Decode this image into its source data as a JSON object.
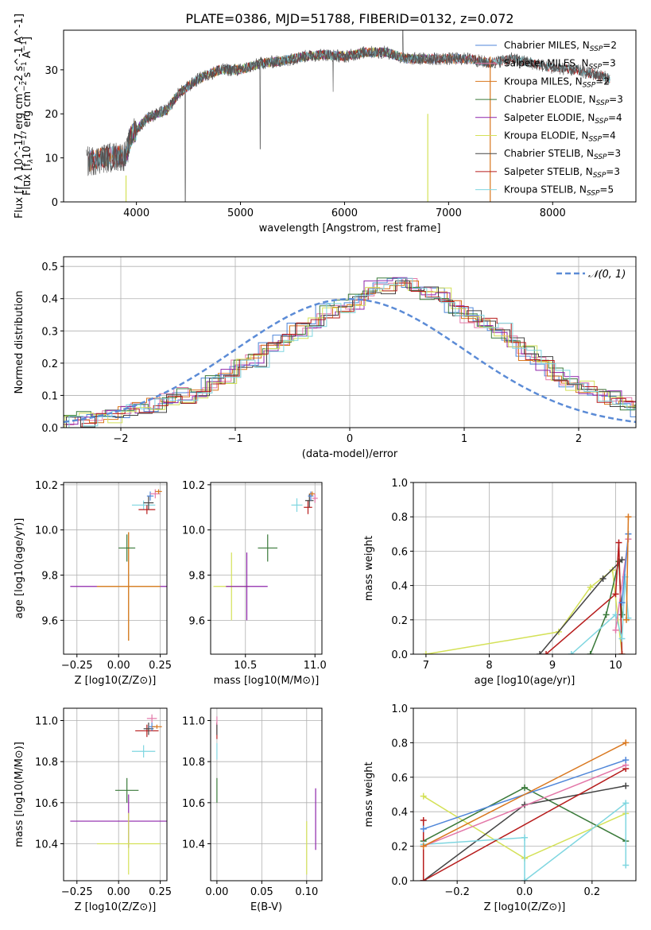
{
  "title": "PLATE=0386, MJD=51788, FIBERID=0132, z=0.072",
  "colors": {
    "chab_miles": "#4f86d9",
    "salp_miles": "#e377a8",
    "krou_miles": "#d9771e",
    "chab_elodie": "#3a7a3a",
    "salp_elodie": "#8e24aa",
    "krou_elodie": "#d4e157",
    "chab_stelib": "#444444",
    "salp_stelib": "#b71c1c",
    "krou_stelib": "#7fd6e0",
    "normal": "#5b8bd6",
    "grid": "#b0b0b0"
  },
  "chart_data": [
    {
      "id": "spectrum",
      "type": "line",
      "xlabel": "wavelength [Angstrom, rest frame]",
      "ylabel": "Flux [f_λ 10^-17 erg cm^-2 s^-1 A^-1]",
      "xlim": [
        3300,
        8800
      ],
      "ylim": [
        0,
        39
      ],
      "xticks": [
        4000,
        5000,
        6000,
        7000,
        8000
      ],
      "yticks": [
        0,
        10,
        20,
        30
      ],
      "grid": false,
      "legend": "upper right",
      "legend_entries": [
        {
          "name": "Chabrier MILES",
          "nssp": "2"
        },
        {
          "name": "Salpeter MILES",
          "nssp": "3"
        },
        {
          "name": "Kroupa MILES",
          "nssp": "2"
        },
        {
          "name": "Chabrier ELODIE",
          "nssp": "3"
        },
        {
          "name": "Salpeter ELODIE",
          "nssp": "4"
        },
        {
          "name": "Kroupa ELODIE",
          "nssp": "4"
        },
        {
          "name": "Chabrier STELIB",
          "nssp": "3"
        },
        {
          "name": "Salpeter STELIB",
          "nssp": "3"
        },
        {
          "name": "Kroupa STELIB",
          "nssp": "5"
        }
      ],
      "continuum": {
        "x": [
          3500,
          3700,
          3900,
          3950,
          4100,
          4300,
          4400,
          4600,
          4800,
          5000,
          5200,
          5400,
          5600,
          5800,
          6000,
          6200,
          6400,
          6600,
          6800,
          7000,
          7200,
          7400,
          7600,
          7800,
          8000,
          8200,
          8400,
          8550
        ],
        "y": [
          9,
          10,
          10.5,
          15,
          19,
          21,
          24.5,
          28,
          30,
          30,
          31.5,
          32,
          33,
          33.5,
          33,
          34,
          34,
          32.5,
          32.5,
          32.5,
          32.5,
          31.5,
          32.5,
          31.5,
          30.5,
          30,
          29,
          28
        ]
      }
    },
    {
      "id": "residuals",
      "type": "histogram",
      "xlabel": "(data-model)/error",
      "ylabel": "Normed distribution",
      "xlim": [
        -2.5,
        2.5
      ],
      "ylim": [
        0,
        0.53
      ],
      "xticks": [
        -2,
        -1,
        0,
        1,
        2
      ],
      "xtick_labels": [
        "−2",
        "−1",
        "0",
        "1",
        "2"
      ],
      "yticks": [
        0.0,
        0.1,
        0.2,
        0.3,
        0.4,
        0.5
      ],
      "ytick_labels": [
        "0.0",
        "0.1",
        "0.2",
        "0.3",
        "0.4",
        "0.5"
      ],
      "grid": true,
      "legend": "upper right",
      "normal_label": "𝒩(0, 1)",
      "bin_edges_start": -2.5,
      "bin_width": 0.125,
      "base": [
        0.02,
        0.025,
        0.03,
        0.04,
        0.055,
        0.06,
        0.07,
        0.09,
        0.1,
        0.11,
        0.14,
        0.16,
        0.19,
        0.21,
        0.24,
        0.27,
        0.3,
        0.33,
        0.36,
        0.38,
        0.39,
        0.43,
        0.44,
        0.45,
        0.44,
        0.42,
        0.41,
        0.37,
        0.35,
        0.32,
        0.3,
        0.26,
        0.23,
        0.2,
        0.17,
        0.14,
        0.12,
        0.1,
        0.09,
        0.07,
        0.05,
        0.045,
        0.04,
        0.03,
        0.025
      ]
    },
    {
      "id": "age-vs-Z",
      "type": "errorbar",
      "xlabel": "Z [log10(Z/Z⊙)]",
      "ylabel": "age [log10(age/yr)]",
      "xlim": [
        -0.33,
        0.29
      ],
      "ylim": [
        9.45,
        10.21
      ],
      "xticks": [
        -0.25,
        0.0,
        0.25
      ],
      "xtick_labels": [
        "−0.25",
        "0.00",
        "0.25"
      ],
      "yticks": [
        9.6,
        9.8,
        10.0,
        10.2
      ],
      "ytick_labels": [
        "9.6",
        "9.8",
        "10.0",
        "10.2"
      ],
      "grid": true,
      "points": [
        {
          "s": "salp_elodie",
          "x": 0.06,
          "y": 9.75,
          "xe": 0.35,
          "ye": 0.24
        },
        {
          "s": "krou_elodie",
          "x": 0.06,
          "y": 9.75,
          "xe": 0.19,
          "ye": 0.24
        },
        {
          "s": "krou_miles",
          "x": 0.06,
          "y": 9.75,
          "xe": 0.19,
          "ye": 0.24
        },
        {
          "s": "chab_elodie",
          "x": 0.05,
          "y": 9.92,
          "xe": 0.05,
          "ye": 0.06
        },
        {
          "s": "krou_stelib",
          "x": 0.15,
          "y": 10.11,
          "xe": 0.07,
          "ye": 0.02
        },
        {
          "s": "salp_stelib",
          "x": 0.17,
          "y": 10.09,
          "xe": 0.05,
          "ye": 0.02
        },
        {
          "s": "chab_stelib",
          "x": 0.18,
          "y": 10.12,
          "xe": 0.03,
          "ye": 0.03
        },
        {
          "s": "chab_miles",
          "x": 0.19,
          "y": 10.15,
          "xe": 0.02,
          "ye": 0.02
        },
        {
          "s": "salp_miles",
          "x": 0.22,
          "y": 10.16,
          "xe": 0.03,
          "ye": 0.02
        },
        {
          "s": "krou_miles",
          "x": 0.24,
          "y": 10.17,
          "xe": 0.02,
          "ye": 0.01
        }
      ]
    },
    {
      "id": "age-vs-mass",
      "type": "errorbar",
      "xlabel": "mass [log10(M/M⊙)]",
      "ylabel": "",
      "xlim": [
        10.25,
        11.05
      ],
      "ylim": [
        9.45,
        10.21
      ],
      "xticks": [
        10.5,
        11.0
      ],
      "xtick_labels": [
        "10.5",
        "11.0"
      ],
      "yticks": [
        9.6,
        9.8,
        10.0,
        10.2
      ],
      "ytick_labels": [
        "9.6",
        "9.8",
        "10.0",
        "10.2"
      ],
      "grid": true,
      "points": [
        {
          "s": "krou_elodie",
          "x": 10.4,
          "y": 9.75,
          "xe": 0.13,
          "ye": 0.15
        },
        {
          "s": "salp_elodie",
          "x": 10.51,
          "y": 9.75,
          "xe": 0.15,
          "ye": 0.15
        },
        {
          "s": "chab_elodie",
          "x": 10.66,
          "y": 9.92,
          "xe": 0.07,
          "ye": 0.06
        },
        {
          "s": "krou_stelib",
          "x": 10.87,
          "y": 10.11,
          "xe": 0.04,
          "ye": 0.03
        },
        {
          "s": "salp_stelib",
          "x": 10.95,
          "y": 10.1,
          "xe": 0.03,
          "ye": 0.03
        },
        {
          "s": "chab_stelib",
          "x": 10.96,
          "y": 10.13,
          "xe": 0.03,
          "ye": 0.03
        },
        {
          "s": "chab_miles",
          "x": 10.97,
          "y": 10.15,
          "xe": 0.02,
          "ye": 0.02
        },
        {
          "s": "krou_miles",
          "x": 10.98,
          "y": 10.16,
          "xe": 0.02,
          "ye": 0.01
        },
        {
          "s": "salp_miles",
          "x": 11.0,
          "y": 10.14,
          "xe": 0.02,
          "ye": 0.02
        }
      ]
    },
    {
      "id": "mass-weight-vs-age",
      "type": "line",
      "xlabel": "age [log10(age/yr)]",
      "ylabel": "mass weight",
      "xlim": [
        6.8,
        10.32
      ],
      "ylim": [
        0,
        1
      ],
      "xticks": [
        7,
        8,
        9,
        10
      ],
      "xtick_labels": [
        "7",
        "8",
        "9",
        "10"
      ],
      "yticks": [
        0,
        0.2,
        0.4,
        0.6,
        0.8,
        1.0
      ],
      "ytick_labels": [
        "0.0",
        "0.2",
        "0.4",
        "0.6",
        "0.8",
        "1.0"
      ],
      "grid": true,
      "series": [
        {
          "s": "krou_elodie",
          "x": [
            7.0,
            9.1,
            9.6,
            9.95,
            10.1
          ],
          "y": [
            0.0,
            0.13,
            0.39,
            0.49,
            0.0
          ]
        },
        {
          "s": "chab_elodie",
          "x": [
            9.6,
            9.85,
            10.05,
            10.1
          ],
          "y": [
            0.0,
            0.23,
            0.54,
            0.23
          ]
        },
        {
          "s": "chab_stelib",
          "x": [
            8.8,
            9.8,
            10.1
          ],
          "y": [
            0.0,
            0.44,
            0.55
          ]
        },
        {
          "s": "salp_stelib",
          "x": [
            8.9,
            10.0,
            10.05,
            10.1
          ],
          "y": [
            0.0,
            0.35,
            0.65,
            0.0
          ]
        },
        {
          "s": "krou_stelib",
          "x": [
            9.3,
            10.0,
            10.1,
            10.15,
            10.2
          ],
          "y": [
            0.0,
            0.23,
            0.09,
            0.45,
            0.21
          ]
        },
        {
          "s": "salp_miles",
          "x": [
            10.0,
            10.2
          ],
          "y": [
            0.14,
            0.67
          ]
        },
        {
          "s": "chab_miles",
          "x": [
            10.1,
            10.2
          ],
          "y": [
            0.3,
            0.7
          ]
        },
        {
          "s": "krou_miles",
          "x": [
            10.17,
            10.2
          ],
          "y": [
            0.2,
            0.8
          ]
        }
      ]
    },
    {
      "id": "mass-vs-Z",
      "type": "errorbar",
      "xlabel": "Z [log10(Z/Z⊙)]",
      "ylabel": "mass [log10(M/M⊙)]",
      "xlim": [
        -0.33,
        0.29
      ],
      "ylim": [
        10.22,
        11.06
      ],
      "xticks": [
        -0.25,
        0.0,
        0.25
      ],
      "xtick_labels": [
        "−0.25",
        "0.00",
        "0.25"
      ],
      "yticks": [
        10.4,
        10.6,
        10.8,
        11.0
      ],
      "ytick_labels": [
        "10.4",
        "10.6",
        "10.8",
        "11.0"
      ],
      "grid": true,
      "points": [
        {
          "s": "salp_elodie",
          "x": 0.06,
          "y": 10.51,
          "xe": 0.35,
          "ye": 0.13
        },
        {
          "s": "krou_elodie",
          "x": 0.06,
          "y": 10.4,
          "xe": 0.19,
          "ye": 0.15
        },
        {
          "s": "chab_elodie",
          "x": 0.05,
          "y": 10.66,
          "xe": 0.07,
          "ye": 0.06
        },
        {
          "s": "krou_stelib",
          "x": 0.15,
          "y": 10.85,
          "xe": 0.07,
          "ye": 0.03
        },
        {
          "s": "salp_stelib",
          "x": 0.17,
          "y": 10.95,
          "xe": 0.07,
          "ye": 0.03
        },
        {
          "s": "chab_stelib",
          "x": 0.18,
          "y": 10.96,
          "xe": 0.03,
          "ye": 0.03
        },
        {
          "s": "chab_miles",
          "x": 0.2,
          "y": 10.97,
          "xe": 0.02,
          "ye": 0.02
        },
        {
          "s": "krou_miles",
          "x": 0.23,
          "y": 10.97,
          "xe": 0.03,
          "ye": 0.01
        },
        {
          "s": "salp_miles",
          "x": 0.2,
          "y": 11.01,
          "xe": 0.03,
          "ye": 0.02
        }
      ]
    },
    {
      "id": "mass-vs-ebv",
      "type": "errorbar",
      "xlabel": "E(B-V)",
      "ylabel": "",
      "xlim": [
        -0.007,
        0.117
      ],
      "ylim": [
        10.22,
        11.06
      ],
      "xticks": [
        0.0,
        0.05,
        0.1
      ],
      "xtick_labels": [
        "0.00",
        "0.05",
        "0.10"
      ],
      "yticks": [
        10.4,
        10.6,
        10.8,
        11.0
      ],
      "ytick_labels": [
        "10.4",
        "10.6",
        "10.8",
        "11.0"
      ],
      "grid": true,
      "points": [
        {
          "s": "krou_elodie",
          "x": 0.1,
          "y": 10.38,
          "xe": 0.0,
          "ye": 0.13
        },
        {
          "s": "salp_elodie",
          "x": 0.11,
          "y": 10.52,
          "xe": 0.0,
          "ye": 0.15
        },
        {
          "s": "chab_elodie",
          "x": 0.0,
          "y": 10.66,
          "xe": 0.0,
          "ye": 0.06
        },
        {
          "s": "krou_stelib",
          "x": 0.0,
          "y": 10.85,
          "xe": 0.0,
          "ye": 0.04
        },
        {
          "s": "salp_stelib",
          "x": 0.0,
          "y": 10.95,
          "xe": 0.0,
          "ye": 0.04
        },
        {
          "s": "chab_stelib",
          "x": 0.0,
          "y": 10.96,
          "xe": 0.0,
          "ye": 0.03
        },
        {
          "s": "salp_miles",
          "x": 0.0,
          "y": 11.0,
          "xe": 0.0,
          "ye": 0.02
        }
      ]
    },
    {
      "id": "mass-weight-vs-Z",
      "type": "line",
      "xlabel": "Z [log10(Z/Z⊙)]",
      "ylabel": "mass weight",
      "xlim": [
        -0.33,
        0.33
      ],
      "ylim": [
        0,
        1
      ],
      "xticks": [
        -0.2,
        0.0,
        0.2
      ],
      "xtick_labels": [
        "−0.2",
        "0.0",
        "0.2"
      ],
      "yticks": [
        0,
        0.2,
        0.4,
        0.6,
        0.8,
        1.0
      ],
      "ytick_labels": [
        "0.0",
        "0.2",
        "0.4",
        "0.6",
        "0.8",
        "1.0"
      ],
      "grid": true,
      "series": [
        {
          "s": "krou_elodie",
          "x": [
            -0.3,
            0.0,
            0.3
          ],
          "y": [
            0.49,
            0.13,
            0.39
          ]
        },
        {
          "s": "chab_elodie",
          "x": [
            -0.3,
            0.0,
            0.3
          ],
          "y": [
            0.23,
            0.54,
            0.23
          ]
        },
        {
          "s": "chab_stelib",
          "x": [
            -0.3,
            0.0,
            0.3
          ],
          "y": [
            0.0,
            0.44,
            0.55
          ]
        },
        {
          "s": "salp_stelib",
          "x": [
            -0.3,
            -0.3,
            0.3
          ],
          "y": [
            0.35,
            0.0,
            0.65
          ]
        },
        {
          "s": "krou_stelib",
          "x": [
            -0.3,
            0.0,
            0.0,
            0.3,
            0.3
          ],
          "y": [
            0.21,
            0.25,
            0.0,
            0.45,
            0.09
          ]
        },
        {
          "s": "salp_miles",
          "x": [
            -0.3,
            0.3
          ],
          "y": [
            0.2,
            0.67
          ]
        },
        {
          "s": "chab_miles",
          "x": [
            -0.3,
            0.3
          ],
          "y": [
            0.3,
            0.7
          ]
        },
        {
          "s": "krou_miles",
          "x": [
            -0.3,
            0.3
          ],
          "y": [
            0.2,
            0.8
          ]
        }
      ]
    }
  ]
}
